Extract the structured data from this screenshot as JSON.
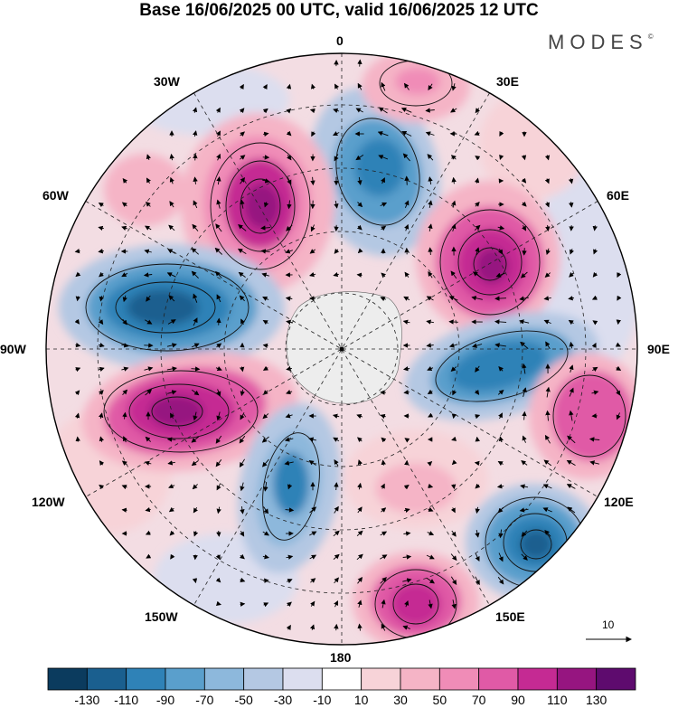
{
  "header": {
    "title": "Base 16/06/2025 00 UTC, valid 16/06/2025 12 UTC",
    "brand": "MODES",
    "brand_mark": "©"
  },
  "map": {
    "projection": "polar-stereographic-south",
    "longitude_labels": {
      "lon_0": "0",
      "lon_30e": "30E",
      "lon_60e": "60E",
      "lon_90e": "90E",
      "lon_120e": "120E",
      "lon_150e": "150E",
      "lon_180": "180",
      "lon_150w": "150W",
      "lon_120w": "120W",
      "lon_90w": "90W",
      "lon_60w": "60W",
      "lon_30w": "30W"
    },
    "vector_reference": {
      "label": "10"
    }
  },
  "colorbar": {
    "ticks": [
      "-130",
      "-110",
      "-90",
      "-70",
      "-50",
      "-30",
      "-10",
      "10",
      "30",
      "50",
      "70",
      "90",
      "110",
      "130"
    ],
    "colors": [
      "#0b3b5e",
      "#1a5f8f",
      "#2f82b7",
      "#5a9fcc",
      "#8db8dc",
      "#b4c8e3",
      "#dcdeef",
      "#ffffff",
      "#f7d3d8",
      "#f5b4c6",
      "#f08cb7",
      "#e05aa6",
      "#c52a93",
      "#961580",
      "#5e0b6e"
    ]
  },
  "colors": {
    "background": "#ffffff",
    "land": "#e8e8e8",
    "contour": "#111111"
  }
}
